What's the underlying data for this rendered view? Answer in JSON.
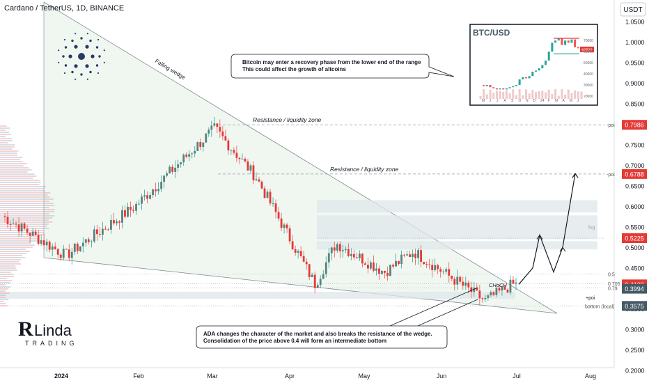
{
  "header": {
    "symbol_title": "Cardano / TetherUS, 1D, BINANCE",
    "currency": "USDT"
  },
  "chart_data": {
    "type": "candlestick",
    "symbol": "ADAUSDT",
    "interval": "1D",
    "exchange": "BINANCE",
    "ylim": [
      0.19,
      1.08
    ],
    "y_ticks": [
      "1.0500",
      "1.0000",
      "0.9500",
      "0.9000",
      "0.8500",
      "0.8000",
      "0.7500",
      "0.7000",
      "0.6500",
      "0.6000",
      "0.5500",
      "0.5000",
      "0.4500",
      "0.4000",
      "0.3500",
      "0.3000",
      "0.2500",
      "0.2000"
    ],
    "x_ticks": [
      "2024",
      "Feb",
      "Mar",
      "Apr",
      "May",
      "Jun",
      "Jul",
      "Aug"
    ],
    "price_tags": [
      {
        "label": "0.7986",
        "value": 0.7986,
        "color": "#e53935"
      },
      {
        "label": "0.6788",
        "value": 0.6788,
        "color": "#e53935"
      },
      {
        "label": "0.5225",
        "value": 0.5225,
        "color": "#e53935"
      },
      {
        "label": "0.4100",
        "value": 0.41,
        "color": "#e53935"
      },
      {
        "label": "0.3994",
        "value": 0.3994,
        "color": "#455a64"
      },
      {
        "label": "0.3575",
        "value": 0.3575,
        "color": "#455a64"
      }
    ],
    "levels": [
      {
        "value": 0.7986,
        "label": "-poi"
      },
      {
        "value": 0.6788,
        "label": "-poi"
      },
      {
        "value": 0.5225,
        "label": ""
      },
      {
        "value": 0.435,
        "label": "0.5"
      },
      {
        "value": 0.412,
        "label": "0.705"
      },
      {
        "value": 0.401,
        "label": "0.79"
      },
      {
        "value": 0.3575,
        "label": "bottom (local)"
      }
    ],
    "zones": [
      {
        "from": 0.585,
        "to": 0.615
      },
      {
        "from": 0.52,
        "to": 0.578
      },
      {
        "from": 0.495,
        "to": 0.515
      },
      {
        "from": 0.375,
        "to": 0.392
      }
    ],
    "key_prices": [
      {
        "date": "2024-01",
        "value": 0.58
      },
      {
        "date": "2024-01-22",
        "value": 0.48
      },
      {
        "date": "2024-02-20",
        "value": 0.6
      },
      {
        "date": "2024-03-12",
        "value": 0.79
      },
      {
        "date": "2024-03-28",
        "value": 0.67
      },
      {
        "date": "2024-04-13",
        "value": 0.41
      },
      {
        "date": "2024-04-25",
        "value": 0.51
      },
      {
        "date": "2024-05-15",
        "value": 0.44
      },
      {
        "date": "2024-05-28",
        "value": 0.49
      },
      {
        "date": "2024-06-25",
        "value": 0.37
      },
      {
        "date": "2024-07-01",
        "value": 0.41
      }
    ],
    "projection": [
      0.41,
      0.45,
      0.53,
      0.44,
      0.5,
      0.68
    ]
  },
  "annotations": {
    "falling_wedge": "Falling wedge",
    "resistance_1": "Resistance / liquidity zone",
    "resistance_2": "Resistance / liquidity zone",
    "fvg": "fvg",
    "choch": "CHoCH",
    "poi": "+poi",
    "bitcoin_note_line1": "Bitcoin may enter a recovery phase from the lower end of the range",
    "bitcoin_note_line2": "This could affect the growth of altcoins",
    "ada_note_line1": "ADA changes the character of the market and also breaks the resistance of the wedge.",
    "ada_note_line2": "Consolidation of the price above 0.4 will form an intermediate bottom"
  },
  "inset": {
    "title": "BTC/USD",
    "price_label": "62522",
    "y_ticks": [
      "70000",
      "60000",
      "50000",
      "40000",
      "30000",
      "20000"
    ],
    "x_ticks": [
      "M",
      "J",
      "J",
      "A",
      "S",
      "O",
      "N",
      "D",
      "24",
      "F",
      "M",
      "A",
      "M",
      "J"
    ]
  },
  "branding": {
    "name": "Linda",
    "tagline": "TRADING"
  }
}
